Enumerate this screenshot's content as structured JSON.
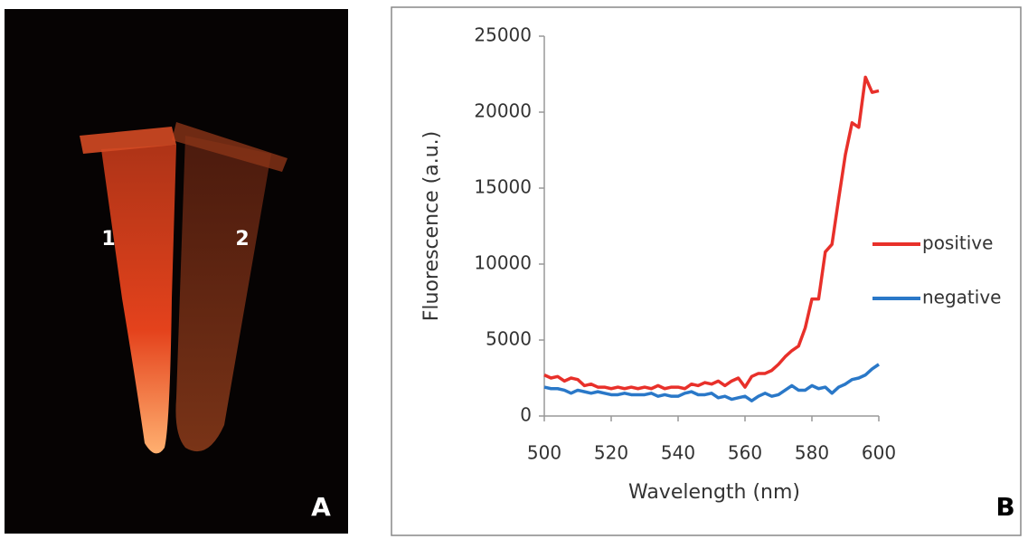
{
  "photo": {
    "tube_labels": [
      "1",
      "2"
    ],
    "panel_label": "A"
  },
  "chart_data": {
    "type": "line",
    "panel_label": "B",
    "x_label": "Wavelength (nm)",
    "y_label": "Fluorescence (a.u.)",
    "x": [
      500,
      502,
      504,
      506,
      508,
      510,
      512,
      514,
      516,
      518,
      520,
      522,
      524,
      526,
      528,
      530,
      532,
      534,
      536,
      538,
      540,
      542,
      544,
      546,
      548,
      550,
      552,
      554,
      556,
      558,
      560,
      562,
      564,
      566,
      568,
      570,
      572,
      574,
      576,
      578,
      580,
      582,
      584,
      586,
      588,
      590,
      592,
      594,
      596,
      598,
      600
    ],
    "series": [
      {
        "name": "positive",
        "color": "#e8302a",
        "values": [
          2700,
          2500,
          2600,
          2300,
          2500,
          2400,
          2000,
          2100,
          1900,
          1900,
          1800,
          1900,
          1800,
          1900,
          1800,
          1900,
          1800,
          2000,
          1800,
          1900,
          1900,
          1800,
          2100,
          2000,
          2200,
          2100,
          2300,
          2000,
          2300,
          2500,
          1900,
          2600,
          2800,
          2800,
          3000,
          3400,
          3900,
          4300,
          4600,
          5800,
          7700,
          7700,
          10800,
          11300,
          14300,
          17200,
          19300,
          19000,
          22300,
          21300,
          21400
        ]
      },
      {
        "name": "negative",
        "color": "#2a78c8",
        "values": [
          1900,
          1800,
          1800,
          1700,
          1500,
          1700,
          1600,
          1500,
          1600,
          1500,
          1400,
          1400,
          1500,
          1400,
          1400,
          1400,
          1500,
          1300,
          1400,
          1300,
          1300,
          1500,
          1600,
          1400,
          1400,
          1500,
          1200,
          1300,
          1100,
          1200,
          1300,
          1000,
          1300,
          1500,
          1300,
          1400,
          1700,
          2000,
          1700,
          1700,
          2000,
          1800,
          1900,
          1500,
          1900,
          2100,
          2400,
          2500,
          2700,
          3100,
          3400
        ]
      }
    ],
    "xlim": [
      500,
      600
    ],
    "xticks": [
      500,
      520,
      540,
      560,
      580,
      600
    ],
    "ylim": [
      0,
      25000
    ],
    "yticks": [
      0,
      5000,
      10000,
      15000,
      20000,
      25000
    ],
    "grid": false,
    "legend": "right"
  }
}
